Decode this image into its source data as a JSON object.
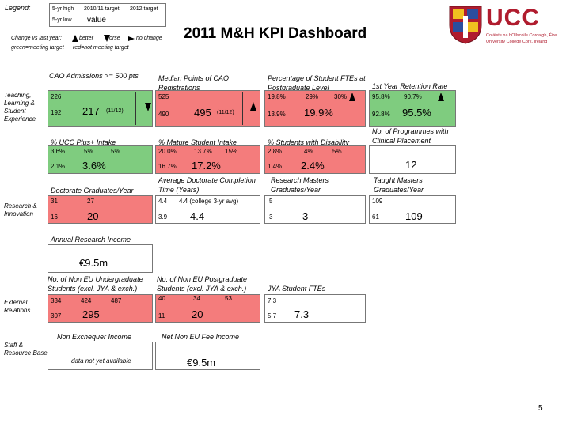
{
  "header": {
    "title": "2011 M&H KPI Dashboard",
    "page_number": "5",
    "logo_text": "UCC",
    "logo_subtitle_1": "Coláiste na hOllscoile Corcaigh, Éire",
    "logo_subtitle_2": "University College Cork, Ireland"
  },
  "legend": {
    "label": "Legend:",
    "col1": "5-yr high",
    "col2": "2010/11 target",
    "col3": "2012 target",
    "low": "5-yr low",
    "value": "value",
    "change": "Change vs last year:",
    "better": "better",
    "worse": "worse",
    "no_change": "no change",
    "green_meaning": "green=meeting target",
    "red_meaning": "red=not meeting target"
  },
  "sections": {
    "teaching": "Teaching, Learning & Student Experience",
    "research": "Research & Innovation",
    "external": "External Relations",
    "staff": "Staff & Resource Base"
  },
  "kpis": {
    "cao": {
      "label": "CAO Admissions >= 500 pts",
      "high": "226",
      "low": "192",
      "value": "217",
      "note": "(11/12)"
    },
    "median": {
      "label": "Median Points of CAO Registrations",
      "high": "525",
      "low": "490",
      "value": "495",
      "note": "(11/12)"
    },
    "pg_fte": {
      "label": "Percentage of Student FTEs at Postgraduate Level",
      "high": "19.8%",
      "t1": "29%",
      "t2": "30%",
      "low": "13.9%",
      "value": "19.9%"
    },
    "retention": {
      "label": "1st Year Retention Rate",
      "high": "95.8%",
      "t1": "90.7%",
      "low": "92.8%",
      "value": "95.5%"
    },
    "ucc_plus": {
      "label": "% UCC Plus+ Intake",
      "high": "3.6%",
      "t1": "5%",
      "t2": "5%",
      "low": "2.1%",
      "value": "3.6%"
    },
    "mature": {
      "label": "% Mature Student Intake",
      "high": "20.0%",
      "t1": "13.7%",
      "t2": "15%",
      "low": "16.7%",
      "value": "17.2%"
    },
    "disability": {
      "label": "% Students with Disability",
      "high": "2.8%",
      "t1": "4%",
      "t2": "5%",
      "low": "1.4%",
      "value": "2.4%"
    },
    "clinical": {
      "label": "No. of Programmes with Clinical Placement",
      "value": "12"
    },
    "doctorate": {
      "label": "Doctorate Graduates/Year",
      "high": "31",
      "t1": "27",
      "low": "16",
      "value": "20"
    },
    "completion": {
      "label": "Average Doctorate Completion Time (Years)",
      "high": "4.4",
      "t1": "4.4 (college 3-yr avg)",
      "low": "3.9",
      "value": "4.4"
    },
    "research_masters": {
      "label": "Research Masters Graduates/Year",
      "high": "5",
      "low": "3",
      "value": "3"
    },
    "taught_masters": {
      "label": "Taught Masters Graduates/Year",
      "high": "109",
      "low": "61",
      "value": "109"
    },
    "research_income": {
      "label": "Annual Research Income",
      "value": "€9.5m"
    },
    "non_eu_ug": {
      "label": "No. of Non EU Undergraduate Students (excl. JYA & exch.)",
      "high": "334",
      "t1": "424",
      "t2": "487",
      "low": "307",
      "value": "295"
    },
    "non_eu_pg": {
      "label": "No. of Non EU Postgraduate Students (excl. JYA & exch.)",
      "high": "40",
      "t1": "34",
      "t2": "53",
      "low": "11",
      "value": "20"
    },
    "jya": {
      "label": "JYA Student FTEs",
      "high": "7.3",
      "low": "5.7",
      "value": "7.3"
    },
    "non_exchequer": {
      "label": "Non Exchequer Income",
      "value": "data not yet available"
    },
    "net_non_eu_fee": {
      "label": "Net Non EU Fee Income",
      "value": "€9.5m"
    }
  },
  "colors": {
    "meeting_target": "#7fcc7f",
    "not_meeting_target": "#f47c7c",
    "logo_red": "#b01c2e"
  }
}
